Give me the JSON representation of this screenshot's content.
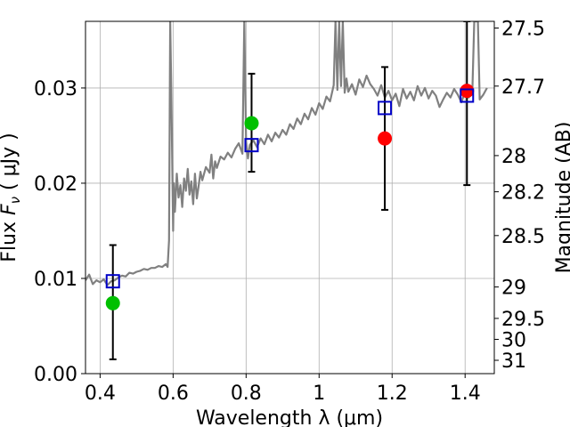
{
  "chart_data": {
    "type": "scatter",
    "title": "",
    "xlabel": "Wavelength  λ (μm)",
    "ylabel": "Flux  F_ν  ( μJy )",
    "ylabel_parts": {
      "pre": "Flux  ",
      "symbol": "F",
      "sub": "ν",
      "post": "  ( μJy )"
    },
    "y2label": "Magnitude (AB)",
    "xlim": [
      0.36,
      1.48
    ],
    "ylim": [
      0.0,
      0.037
    ],
    "grid": true,
    "xticks": [
      {
        "value": 0.4,
        "label": "0.4"
      },
      {
        "value": 0.6,
        "label": "0.6"
      },
      {
        "value": 0.8,
        "label": "0.8"
      },
      {
        "value": 1.0,
        "label": "1"
      },
      {
        "value": 1.2,
        "label": "1.2"
      },
      {
        "value": 1.4,
        "label": "1.4"
      }
    ],
    "yticks": [
      {
        "value": 0.0,
        "label": "0.00"
      },
      {
        "value": 0.01,
        "label": "0.01"
      },
      {
        "value": 0.02,
        "label": "0.02"
      },
      {
        "value": 0.03,
        "label": "0.03"
      }
    ],
    "y2ticks": [
      {
        "flux": 0.0363,
        "label": "27.5"
      },
      {
        "flux": 0.0302,
        "label": "27.7"
      },
      {
        "flux": 0.0229,
        "label": "28"
      },
      {
        "flux": 0.0191,
        "label": "28.2"
      },
      {
        "flux": 0.0145,
        "label": "28.5"
      },
      {
        "flux": 0.0091,
        "label": "29"
      },
      {
        "flux": 0.0058,
        "label": "29.5"
      },
      {
        "flux": 0.0036,
        "label": "30"
      },
      {
        "flux": 0.0014,
        "label": "31"
      }
    ],
    "spectrum": {
      "color": "#808080",
      "x": [
        0.36,
        0.37,
        0.38,
        0.39,
        0.4,
        0.41,
        0.42,
        0.43,
        0.44,
        0.45,
        0.46,
        0.47,
        0.48,
        0.49,
        0.5,
        0.51,
        0.52,
        0.53,
        0.54,
        0.55,
        0.56,
        0.57,
        0.58,
        0.585,
        0.589,
        0.592,
        0.595,
        0.6,
        0.602,
        0.605,
        0.61,
        0.615,
        0.62,
        0.625,
        0.63,
        0.635,
        0.64,
        0.645,
        0.65,
        0.655,
        0.66,
        0.665,
        0.67,
        0.675,
        0.68,
        0.69,
        0.7,
        0.705,
        0.71,
        0.715,
        0.72,
        0.73,
        0.74,
        0.75,
        0.76,
        0.77,
        0.78,
        0.79,
        0.795,
        0.8,
        0.805,
        0.81,
        0.82,
        0.83,
        0.84,
        0.85,
        0.86,
        0.87,
        0.88,
        0.89,
        0.9,
        0.91,
        0.92,
        0.93,
        0.94,
        0.95,
        0.96,
        0.97,
        0.98,
        0.99,
        1.0,
        1.01,
        1.02,
        1.03,
        1.04,
        1.045,
        1.05,
        1.055,
        1.06,
        1.065,
        1.07,
        1.075,
        1.08,
        1.09,
        1.1,
        1.11,
        1.12,
        1.13,
        1.14,
        1.15,
        1.16,
        1.17,
        1.18,
        1.19,
        1.2,
        1.21,
        1.22,
        1.23,
        1.24,
        1.25,
        1.26,
        1.27,
        1.28,
        1.29,
        1.3,
        1.31,
        1.32,
        1.33,
        1.34,
        1.35,
        1.36,
        1.37,
        1.38,
        1.39,
        1.4,
        1.41,
        1.42,
        1.425,
        1.43,
        1.435,
        1.44,
        1.45,
        1.46
      ],
      "y": [
        0.0098,
        0.0104,
        0.0094,
        0.0098,
        0.0096,
        0.0099,
        0.0093,
        0.0097,
        0.0098,
        0.0101,
        0.0103,
        0.0102,
        0.0106,
        0.0105,
        0.0107,
        0.0108,
        0.011,
        0.0109,
        0.0111,
        0.0111,
        0.0113,
        0.0112,
        0.0115,
        0.0112,
        0.014,
        0.037,
        0.03,
        0.015,
        0.02,
        0.017,
        0.021,
        0.0185,
        0.0198,
        0.0175,
        0.0205,
        0.0192,
        0.0215,
        0.0188,
        0.0202,
        0.0178,
        0.021,
        0.0184,
        0.0197,
        0.0212,
        0.0203,
        0.0217,
        0.0211,
        0.023,
        0.0205,
        0.0223,
        0.0216,
        0.0228,
        0.0225,
        0.0232,
        0.0227,
        0.0236,
        0.0242,
        0.0231,
        0.037,
        0.0244,
        0.0226,
        0.024,
        0.0245,
        0.0238,
        0.0247,
        0.0241,
        0.0251,
        0.0244,
        0.0253,
        0.0248,
        0.0256,
        0.0251,
        0.0262,
        0.0257,
        0.0268,
        0.0262,
        0.0273,
        0.0267,
        0.0279,
        0.0272,
        0.0284,
        0.0278,
        0.0291,
        0.0286,
        0.0303,
        0.037,
        0.0298,
        0.037,
        0.0302,
        0.037,
        0.0295,
        0.031,
        0.0296,
        0.0304,
        0.0293,
        0.0309,
        0.0301,
        0.0313,
        0.0304,
        0.0299,
        0.0292,
        0.0303,
        0.029,
        0.0297,
        0.0287,
        0.0294,
        0.0281,
        0.0299,
        0.0289,
        0.0296,
        0.0287,
        0.0302,
        0.0292,
        0.03,
        0.0289,
        0.0297,
        0.0292,
        0.028,
        0.0288,
        0.0295,
        0.029,
        0.0299,
        0.0293,
        0.0285,
        0.0296,
        0.029,
        0.0298,
        0.037,
        0.037,
        0.037,
        0.0288,
        0.0293,
        0.03
      ]
    },
    "series": [
      {
        "marker": "circle",
        "color": "#00c000",
        "x": [
          0.435,
          0.815
        ],
        "y": [
          0.0074,
          0.0263
        ]
      },
      {
        "marker": "circle",
        "color": "#ff0000",
        "x": [
          1.18,
          1.405
        ],
        "y": [
          0.0247,
          0.0297
        ]
      },
      {
        "marker": "square-open",
        "color": "#0000c8",
        "x": [
          0.435,
          0.815,
          1.18,
          1.405
        ],
        "y": [
          0.0097,
          0.024,
          0.0279,
          0.0292
        ]
      }
    ],
    "errorbars": {
      "color": "#000000",
      "items": [
        {
          "x": 0.435,
          "low": 0.0015,
          "high": 0.0135
        },
        {
          "x": 0.815,
          "low": 0.0212,
          "high": 0.0315
        },
        {
          "x": 1.18,
          "low": 0.0172,
          "high": 0.0322
        },
        {
          "x": 1.405,
          "low": 0.0198,
          "high": 0.037
        }
      ]
    }
  }
}
